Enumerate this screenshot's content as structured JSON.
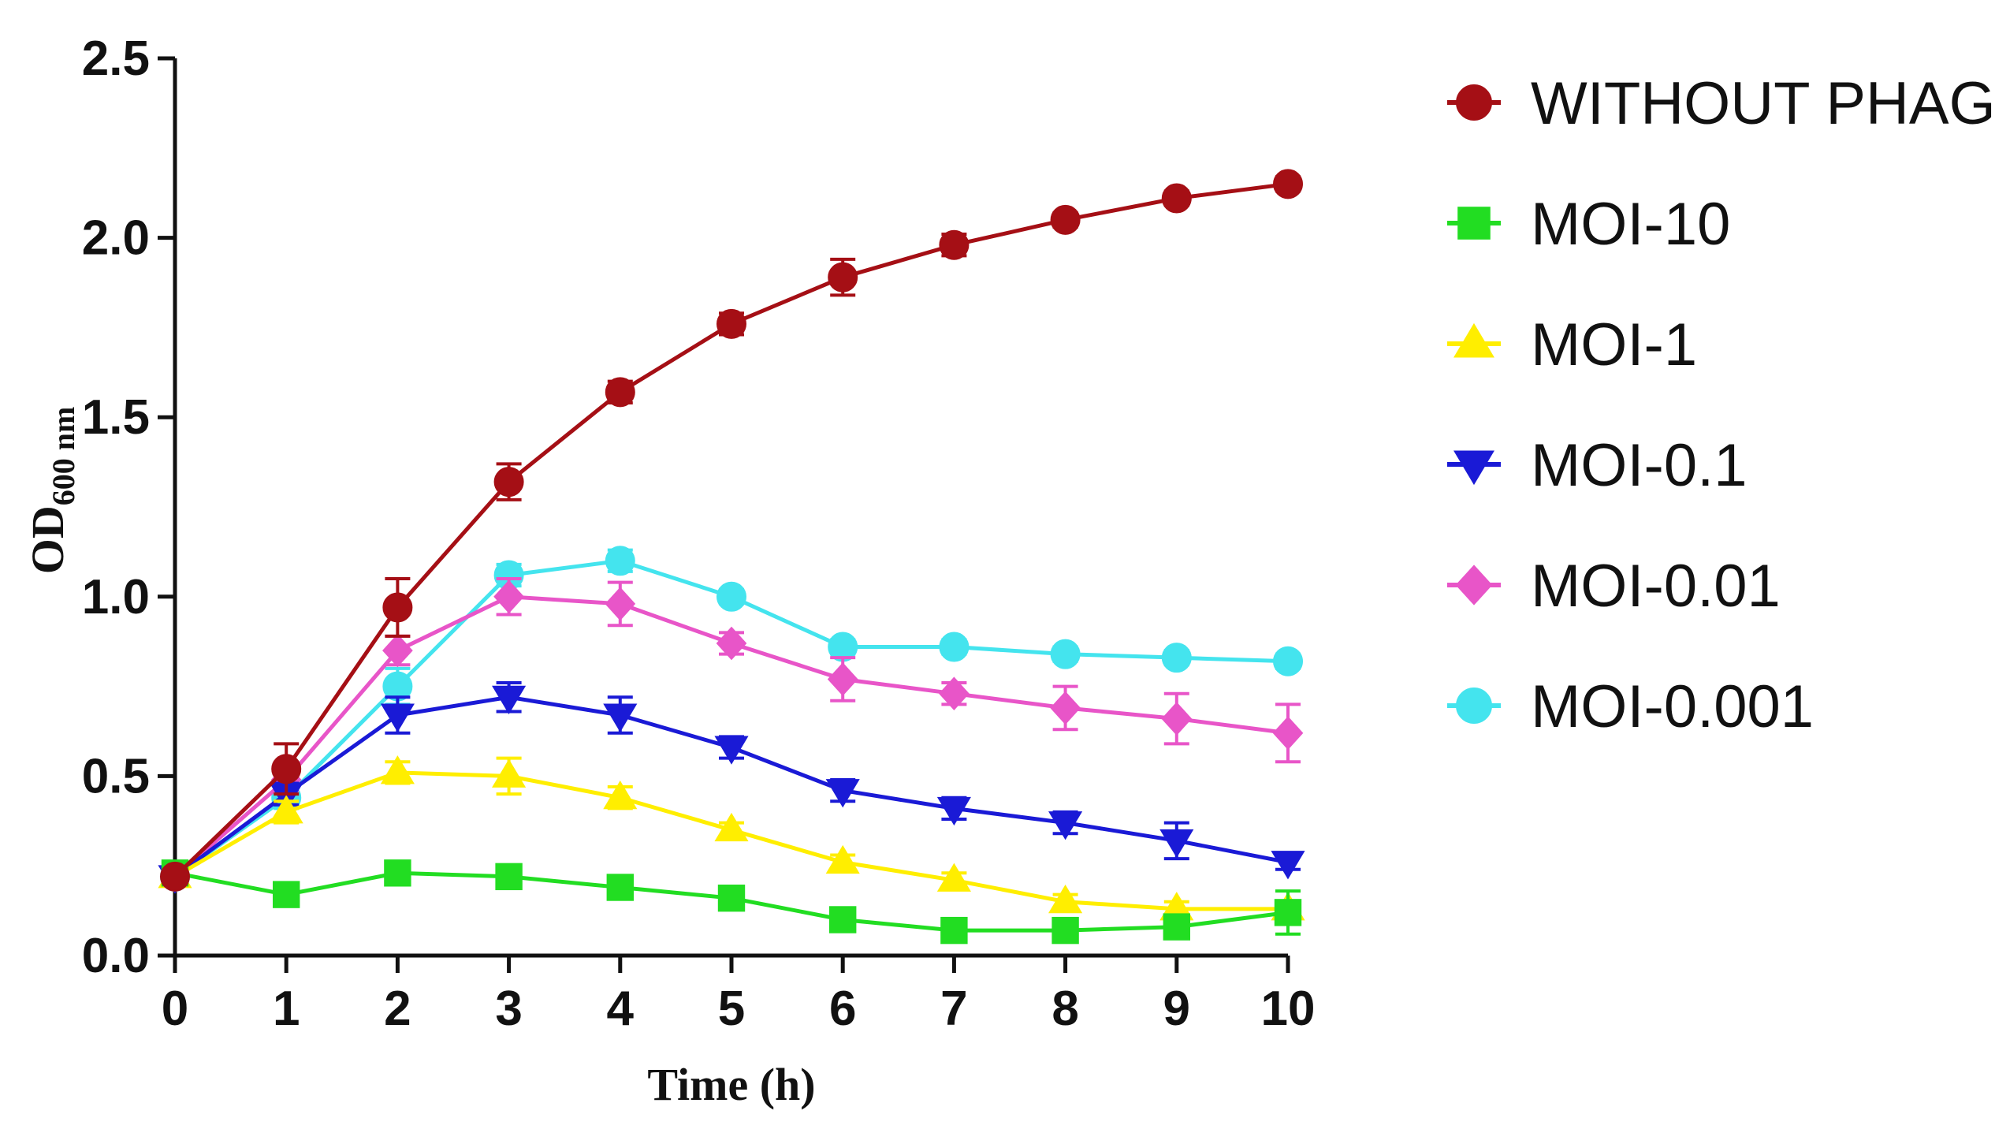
{
  "chart_data": {
    "type": "line",
    "title": "",
    "xlabel": "Time (h)",
    "ylabel_main": "OD",
    "ylabel_sub": "600 nm",
    "xlim": [
      0,
      10
    ],
    "ylim": [
      0,
      2.5
    ],
    "x": [
      0,
      1,
      2,
      3,
      4,
      5,
      6,
      7,
      8,
      9,
      10
    ],
    "x_ticks": [
      "0",
      "1",
      "2",
      "3",
      "4",
      "5",
      "6",
      "7",
      "8",
      "9",
      "10"
    ],
    "y_ticks": [
      {
        "value": 0.0,
        "label": "0.0"
      },
      {
        "value": 0.5,
        "label": "0.5"
      },
      {
        "value": 1.0,
        "label": "1.0"
      },
      {
        "value": 1.5,
        "label": "1.5"
      },
      {
        "value": 2.0,
        "label": "2.0"
      },
      {
        "value": 2.5,
        "label": "2.5"
      }
    ],
    "grid": false,
    "legend_position": "right",
    "series": [
      {
        "name": "WITHOUT PHAGE",
        "color": "#a50f15",
        "marker": "circle",
        "values": [
          0.22,
          0.52,
          0.97,
          1.32,
          1.57,
          1.76,
          1.89,
          1.98,
          2.05,
          2.11,
          2.15
        ],
        "errors": [
          0.02,
          0.07,
          0.08,
          0.05,
          0.03,
          0.03,
          0.05,
          0.03,
          0.02,
          0.02,
          0.02
        ]
      },
      {
        "name": "MOI-10",
        "color": "#22dd22",
        "marker": "square",
        "values": [
          0.23,
          0.17,
          0.23,
          0.22,
          0.19,
          0.16,
          0.1,
          0.07,
          0.07,
          0.08,
          0.12
        ],
        "errors": [
          0.02,
          0.02,
          0.02,
          0.03,
          0.02,
          0.02,
          0.02,
          0.02,
          0.02,
          0.03,
          0.06
        ]
      },
      {
        "name": "MOI-1",
        "color": "#ffee00",
        "marker": "triangle-up",
        "values": [
          0.22,
          0.4,
          0.51,
          0.5,
          0.44,
          0.35,
          0.26,
          0.21,
          0.15,
          0.13,
          0.13
        ],
        "errors": [
          0.02,
          0.03,
          0.03,
          0.05,
          0.03,
          0.02,
          0.02,
          0.02,
          0.02,
          0.02,
          0.02
        ]
      },
      {
        "name": "MOI-0.1",
        "color": "#1a1ad6",
        "marker": "triangle-down",
        "values": [
          0.22,
          0.45,
          0.67,
          0.72,
          0.67,
          0.58,
          0.46,
          0.41,
          0.37,
          0.32,
          0.26
        ],
        "errors": [
          0.02,
          0.03,
          0.05,
          0.04,
          0.05,
          0.03,
          0.03,
          0.03,
          0.03,
          0.05,
          0.02
        ]
      },
      {
        "name": "MOI-0.01",
        "color": "#e855c8",
        "marker": "diamond",
        "values": [
          0.22,
          0.49,
          0.85,
          1.0,
          0.98,
          0.87,
          0.77,
          0.73,
          0.69,
          0.66,
          0.62
        ],
        "errors": [
          0.02,
          0.03,
          0.04,
          0.05,
          0.06,
          0.03,
          0.06,
          0.03,
          0.06,
          0.07,
          0.08
        ]
      },
      {
        "name": "MOI-0.001",
        "color": "#44e4ee",
        "marker": "circle",
        "values": [
          0.22,
          0.44,
          0.75,
          1.06,
          1.1,
          1.0,
          0.86,
          0.86,
          0.84,
          0.83,
          0.82
        ],
        "errors": [
          0.02,
          0.03,
          0.05,
          0.03,
          0.03,
          0.02,
          0.02,
          0.02,
          0.02,
          0.02,
          0.02
        ]
      }
    ]
  }
}
